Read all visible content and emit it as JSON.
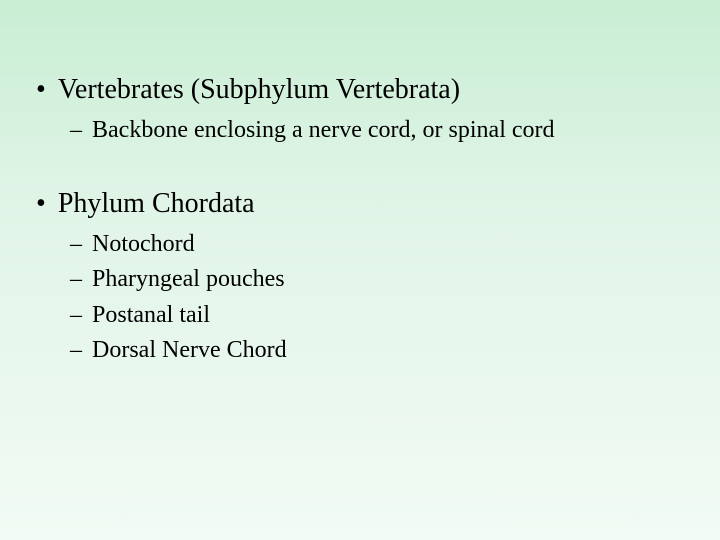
{
  "slide": {
    "background_gradient": [
      "#c8eed3",
      "#dff4e6",
      "#f2fbf5"
    ],
    "text_color": "#000000",
    "font_family": "Times New Roman",
    "l1_fontsize": 28,
    "l2_fontsize": 24,
    "bullets": [
      {
        "text": "Vertebrates (Subphylum Vertebrata)",
        "sub": [
          "Backbone enclosing a nerve cord, or spinal cord"
        ]
      },
      {
        "text": "Phylum Chordata",
        "sub": [
          "Notochord",
          "Pharyngeal pouches",
          "Postanal tail",
          "Dorsal Nerve Chord"
        ]
      }
    ]
  }
}
